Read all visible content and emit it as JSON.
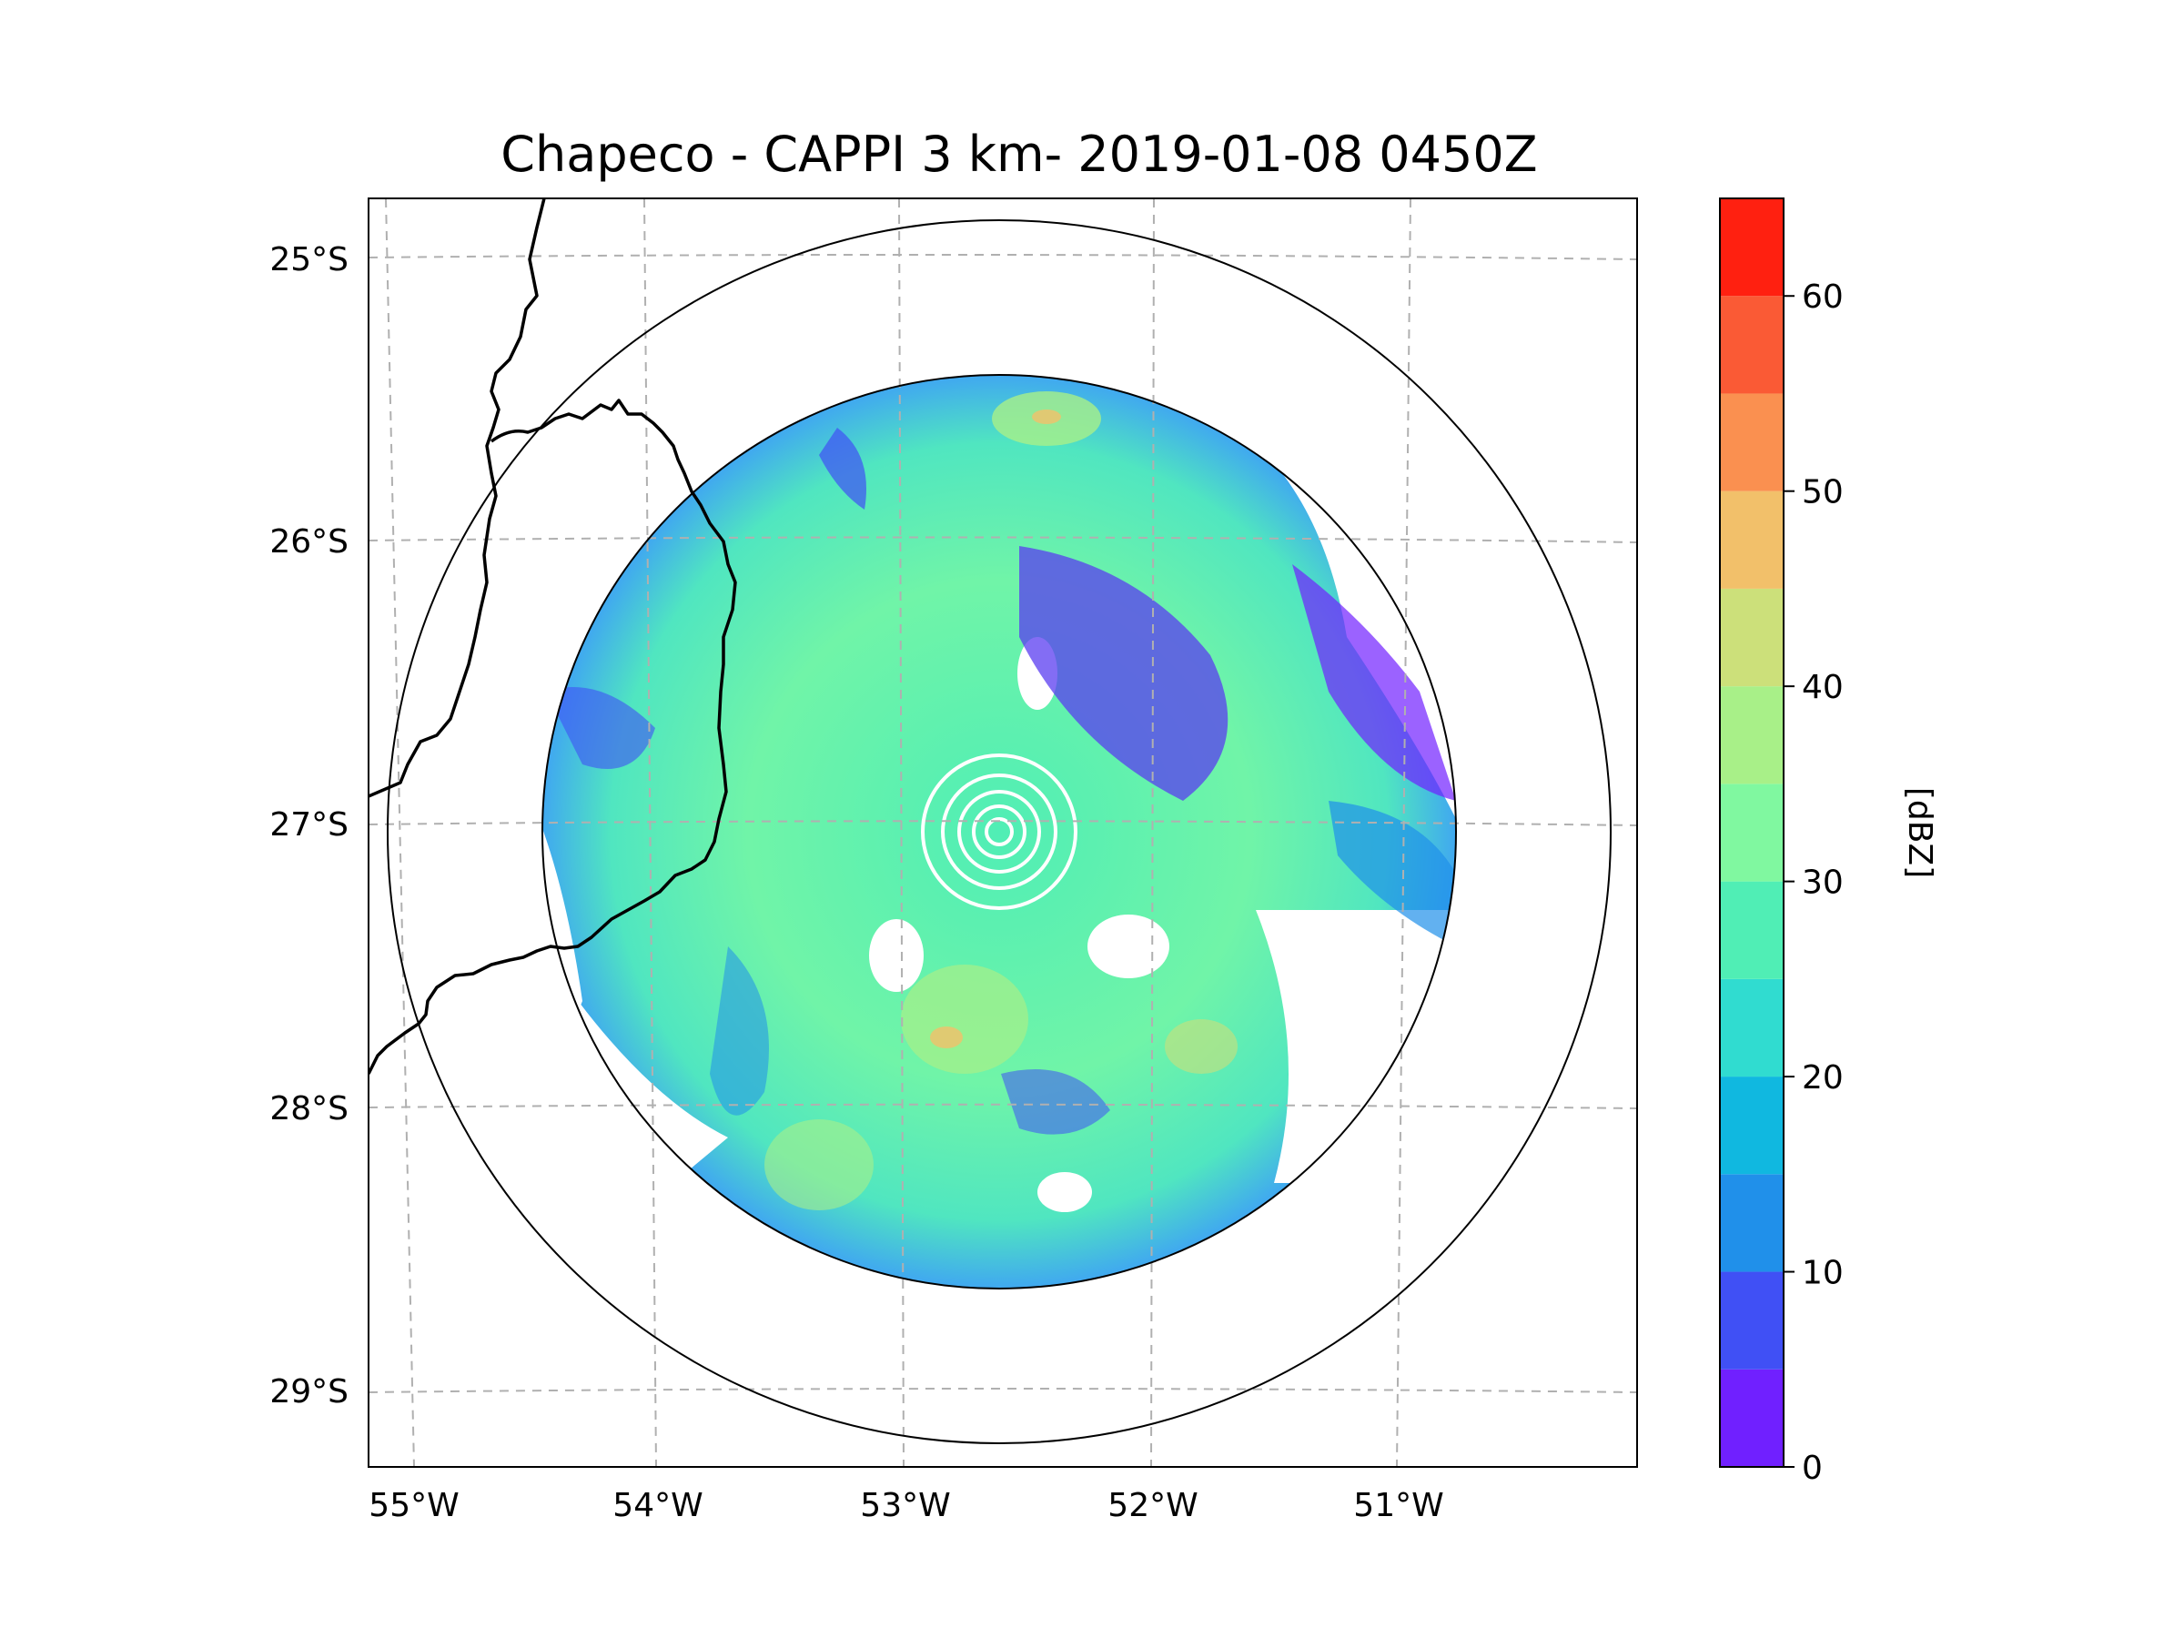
{
  "title": "Chapeco - CAPPI 3 km- 2019-01-08 0450Z",
  "map": {
    "lat_ticks": [
      "25°S",
      "26°S",
      "27°S",
      "28°S",
      "29°S"
    ],
    "lon_ticks": [
      "55°W",
      "54°W",
      "53°W",
      "52°W",
      "51°W"
    ],
    "gridlines": true,
    "range_rings": 2
  },
  "colorbar": {
    "label": "[dBZ]",
    "ticks": [
      "0",
      "10",
      "20",
      "30",
      "40",
      "50",
      "60"
    ],
    "range": [
      0,
      65
    ],
    "step": 5,
    "colors": [
      "#7020ff",
      "#4050f5",
      "#2090ea",
      "#10b8e0",
      "#30dcd0",
      "#50eeb5",
      "#80f8a0",
      "#a8f088",
      "#cce07a",
      "#f2c06a",
      "#fa9050",
      "#fa5a35",
      "#ff2010"
    ]
  }
}
